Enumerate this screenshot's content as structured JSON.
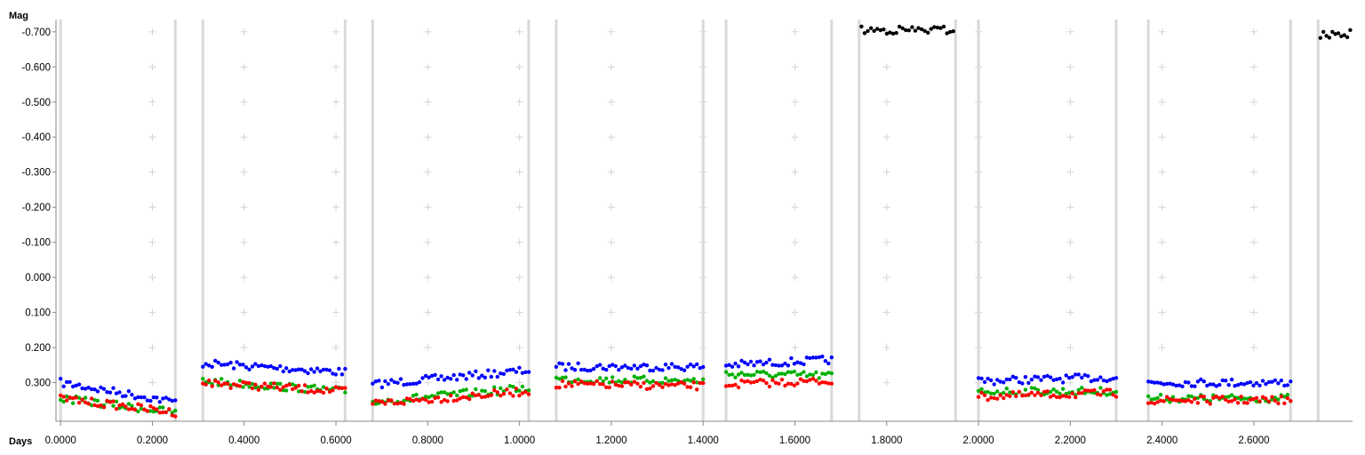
{
  "chart_data": {
    "type": "scatter",
    "title": "",
    "ylabel": "Mag",
    "xlabel": "Days",
    "y_inverted": true,
    "ylim": [
      0.41,
      -0.735
    ],
    "xlim": [
      -0.01,
      2.815
    ],
    "x_ticks": [
      {
        "value": 0.0,
        "label": "0.0000"
      },
      {
        "value": 0.2,
        "label": "0.2000"
      },
      {
        "value": 0.4,
        "label": "0.4000"
      },
      {
        "value": 0.6,
        "label": "0.6000"
      },
      {
        "value": 0.8,
        "label": "0.8000"
      },
      {
        "value": 1.0,
        "label": "1.0000"
      },
      {
        "value": 1.2,
        "label": "1.2000"
      },
      {
        "value": 1.4,
        "label": "1.4000"
      },
      {
        "value": 1.6,
        "label": "1.6000"
      },
      {
        "value": 1.8,
        "label": "1.8000"
      },
      {
        "value": 2.0,
        "label": "2.0000"
      },
      {
        "value": 2.2,
        "label": "2.2000"
      },
      {
        "value": 2.4,
        "label": "2.4000"
      },
      {
        "value": 2.6,
        "label": "2.6000"
      }
    ],
    "y_ticks": [
      {
        "value": -0.7,
        "label": "-0.700"
      },
      {
        "value": -0.6,
        "label": "-0.600"
      },
      {
        "value": -0.5,
        "label": "-0.500"
      },
      {
        "value": -0.4,
        "label": "-0.400"
      },
      {
        "value": -0.3,
        "label": "-0.300"
      },
      {
        "value": -0.2,
        "label": "-0.200"
      },
      {
        "value": -0.1,
        "label": "-0.100"
      },
      {
        "value": 0.0,
        "label": "0.000"
      },
      {
        "value": 0.1,
        "label": "0.100"
      },
      {
        "value": 0.2,
        "label": "0.200"
      },
      {
        "value": 0.3,
        "label": "0.300"
      }
    ],
    "grid_plus_x": [
      0.2,
      0.4,
      0.6,
      0.8,
      1.0,
      1.2,
      1.4,
      1.6,
      1.8,
      2.0,
      2.2,
      2.4,
      2.6
    ],
    "grid_plus_y": [
      -0.7,
      -0.6,
      -0.5,
      -0.4,
      -0.3,
      -0.2,
      -0.1,
      0.0,
      0.1,
      0.2,
      0.3
    ],
    "session_boundaries": [
      0.0,
      0.25,
      0.31,
      0.62,
      0.68,
      1.02,
      1.08,
      1.4,
      1.45,
      1.68,
      1.74,
      1.95,
      2.0,
      2.3,
      2.37,
      2.68,
      2.74
    ],
    "series": [
      {
        "color": "#0000ff",
        "segments": [
          {
            "x0": 0.0,
            "x1": 0.25,
            "y0": 0.3,
            "y1": 0.355
          },
          {
            "x0": 0.31,
            "x1": 0.62,
            "y0": 0.245,
            "y1": 0.27
          },
          {
            "x0": 0.68,
            "x1": 1.02,
            "y0": 0.305,
            "y1": 0.265
          },
          {
            "x0": 1.08,
            "x1": 1.4,
            "y0": 0.255,
            "y1": 0.255
          },
          {
            "x0": 1.45,
            "x1": 1.68,
            "y0": 0.25,
            "y1": 0.235
          },
          {
            "x0": 2.0,
            "x1": 2.3,
            "y0": 0.295,
            "y1": 0.285
          },
          {
            "x0": 2.37,
            "x1": 2.68,
            "y0": 0.3,
            "y1": 0.3
          }
        ]
      },
      {
        "color": "#00b000",
        "segments": [
          {
            "x0": 0.0,
            "x1": 0.25,
            "y0": 0.345,
            "y1": 0.385
          },
          {
            "x0": 0.31,
            "x1": 0.62,
            "y0": 0.295,
            "y1": 0.325
          },
          {
            "x0": 0.68,
            "x1": 1.02,
            "y0": 0.355,
            "y1": 0.315
          },
          {
            "x0": 1.08,
            "x1": 1.4,
            "y0": 0.29,
            "y1": 0.295
          },
          {
            "x0": 1.45,
            "x1": 1.68,
            "y0": 0.275,
            "y1": 0.28
          },
          {
            "x0": 2.0,
            "x1": 2.3,
            "y0": 0.325,
            "y1": 0.325
          },
          {
            "x0": 2.37,
            "x1": 2.68,
            "y0": 0.345,
            "y1": 0.345
          }
        ]
      },
      {
        "color": "#ff0000",
        "segments": [
          {
            "x0": 0.0,
            "x1": 0.25,
            "y0": 0.345,
            "y1": 0.385
          },
          {
            "x0": 0.31,
            "x1": 0.62,
            "y0": 0.3,
            "y1": 0.325
          },
          {
            "x0": 0.68,
            "x1": 1.02,
            "y0": 0.36,
            "y1": 0.325
          },
          {
            "x0": 1.08,
            "x1": 1.4,
            "y0": 0.305,
            "y1": 0.31
          },
          {
            "x0": 1.45,
            "x1": 1.68,
            "y0": 0.305,
            "y1": 0.295
          },
          {
            "x0": 2.0,
            "x1": 2.3,
            "y0": 0.34,
            "y1": 0.33
          },
          {
            "x0": 2.37,
            "x1": 2.68,
            "y0": 0.35,
            "y1": 0.35
          }
        ]
      },
      {
        "color": "#000000",
        "segments": [
          {
            "x0": 1.745,
            "x1": 1.945,
            "y0": -0.705,
            "y1": -0.705
          },
          {
            "x0": 2.745,
            "x1": 2.81,
            "y0": -0.69,
            "y1": -0.695
          }
        ]
      }
    ]
  }
}
